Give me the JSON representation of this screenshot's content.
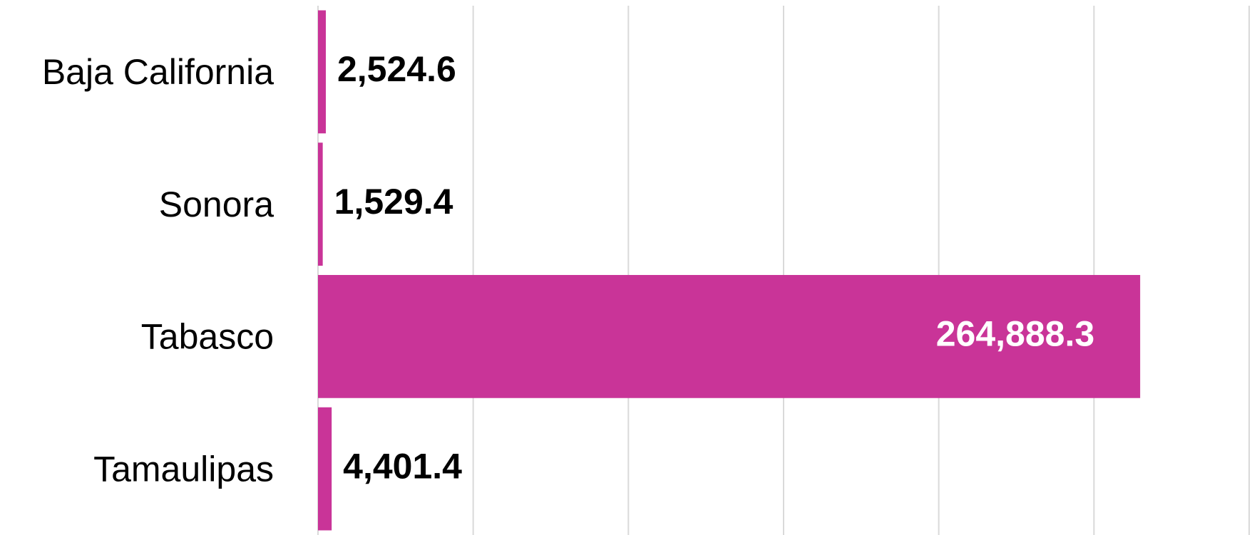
{
  "chart_data": {
    "type": "barh",
    "categories": [
      "Baja California",
      "Sonora",
      "Tabasco",
      "Tamaulipas"
    ],
    "values": [
      2524.6,
      1529.4,
      264888.3,
      4401.4
    ],
    "value_labels": [
      "2,524.6",
      "1,529.4",
      "264,888.3",
      "4,401.4"
    ],
    "color": "#c93498",
    "xlim": [
      0,
      300000
    ],
    "xticks": [
      0,
      50000,
      100000,
      150000,
      200000,
      250000,
      300000
    ],
    "grid": true
  }
}
